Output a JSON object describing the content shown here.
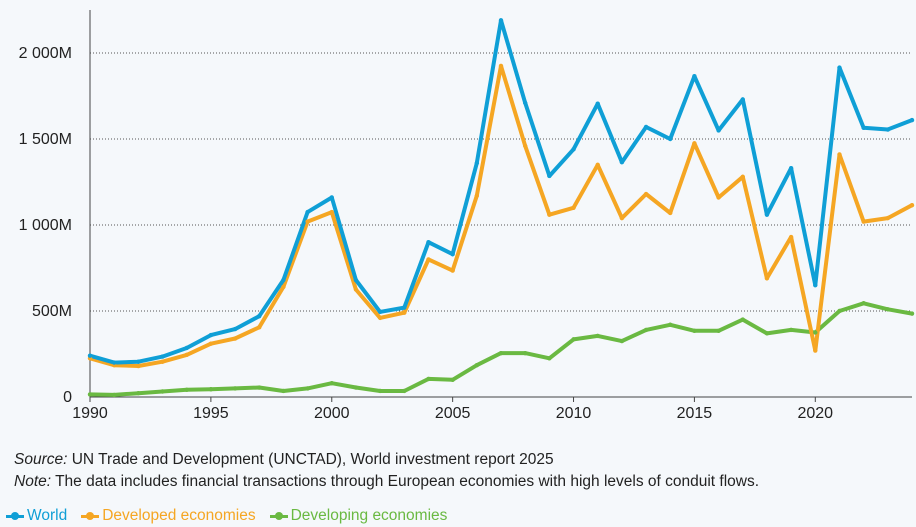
{
  "chart_data": {
    "type": "line",
    "x": [
      1990,
      1991,
      1992,
      1993,
      1994,
      1995,
      1996,
      1997,
      1998,
      1999,
      2000,
      2001,
      2002,
      2003,
      2004,
      2005,
      2006,
      2007,
      2008,
      2009,
      2010,
      2011,
      2012,
      2013,
      2014,
      2015,
      2016,
      2017,
      2018,
      2019,
      2020,
      2021,
      2022,
      2023,
      2024
    ],
    "series": [
      {
        "name": "World",
        "color": "#0f9fd6",
        "values": [
          240,
          200,
          205,
          235,
          285,
          360,
          395,
          470,
          680,
          1075,
          1160,
          680,
          495,
          520,
          900,
          830,
          1360,
          2190,
          1710,
          1285,
          1440,
          1705,
          1365,
          1570,
          1500,
          1865,
          1550,
          1730,
          1060,
          1330,
          650,
          1915,
          1565,
          1555,
          1610
        ]
      },
      {
        "name": "Developed economies",
        "color": "#f5a623",
        "values": [
          225,
          185,
          180,
          205,
          245,
          310,
          340,
          405,
          640,
          1020,
          1075,
          625,
          460,
          490,
          800,
          735,
          1170,
          1925,
          1460,
          1060,
          1100,
          1350,
          1040,
          1180,
          1070,
          1475,
          1160,
          1280,
          690,
          930,
          270,
          1410,
          1020,
          1040,
          1115
        ]
      },
      {
        "name": "Developing economies",
        "color": "#6ab942",
        "values": [
          15,
          12,
          22,
          32,
          42,
          45,
          50,
          55,
          35,
          50,
          80,
          55,
          35,
          35,
          105,
          100,
          185,
          255,
          255,
          225,
          335,
          355,
          325,
          390,
          420,
          385,
          385,
          450,
          370,
          390,
          375,
          500,
          545,
          510,
          485
        ]
      }
    ],
    "xticks": [
      1990,
      1995,
      2000,
      2005,
      2010,
      2015,
      2020
    ],
    "yticks": [
      0,
      500,
      1000,
      1500,
      2000
    ],
    "ytick_labels": [
      "0",
      "500M",
      "1 000M",
      "1 500M",
      "2 000M"
    ],
    "ylim": [
      0,
      2250
    ],
    "xlim": [
      1990,
      2024
    ],
    "grid": "horizontal-dotted",
    "legend_position": "bottom-left"
  },
  "notes": {
    "source_label": "Source:",
    "source_text": " UN Trade and Development (UNCTAD), World investment report 2025",
    "note_label": "Note:",
    "note_text": " The data includes financial transactions through European economies with high levels of conduit flows."
  },
  "legend": [
    "World",
    "Developed economies",
    "Developing economies"
  ]
}
